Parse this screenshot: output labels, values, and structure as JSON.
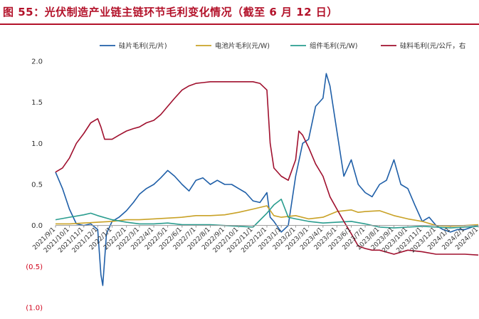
{
  "title": "图 55：光伏制造产业链主链环节毛利变化情况（截至 6 月 12 日）",
  "chart_data": {
    "type": "line",
    "ylim": [
      -1.0,
      2.0
    ],
    "yticks": [
      {
        "value": 2.0,
        "label": "2.0"
      },
      {
        "value": 1.5,
        "label": "1.5"
      },
      {
        "value": 1.0,
        "label": "1.0"
      },
      {
        "value": 0.5,
        "label": "0.5"
      },
      {
        "value": 0.0,
        "label": "0.0"
      },
      {
        "value": -0.5,
        "label": "(0.5)"
      },
      {
        "value": -1.0,
        "label": "(1.0)"
      }
    ],
    "x_labels": [
      "2021/9/1",
      "2021/10/1",
      "2021/11/1",
      "2021/12/1",
      "2022/1/1",
      "2022/2/1",
      "2022/3/1",
      "2022/4/1",
      "2022/5/1",
      "2022/6/1",
      "2022/7/1",
      "2022/8/1",
      "2022/9/1",
      "2022/10/1",
      "2022/11/1",
      "2022/12/1",
      "2023/1/1",
      "2023/2/1",
      "2023/3/1",
      "2023/4/1",
      "2023/5/1",
      "2023/6/1",
      "2023/7/1",
      "2023/8/1",
      "2023/9/1",
      "2023/10/1",
      "2023/11/1",
      "2023/12/1",
      "2024/1/1",
      "2024/2/1",
      "2024/3/1"
    ],
    "legend_position": "top",
    "grid": false,
    "series": [
      {
        "name": "硅片毛利(元/片)",
        "color": "#1f5fa8",
        "points": [
          [
            "2021/9/1",
            0.65
          ],
          [
            "2021/9/16",
            0.45
          ],
          [
            "2021/10/1",
            0.2
          ],
          [
            "2021/10/16",
            0.02
          ],
          [
            "2021/11/1",
            0.0
          ],
          [
            "2021/11/16",
            0.02
          ],
          [
            "2021/12/1",
            -0.05
          ],
          [
            "2021/12/8",
            -0.6
          ],
          [
            "2021/12/12",
            -0.73
          ],
          [
            "2021/12/20",
            -0.1
          ],
          [
            "2022/1/1",
            0.05
          ],
          [
            "2022/1/16",
            0.1
          ],
          [
            "2022/2/1",
            0.18
          ],
          [
            "2022/2/16",
            0.28
          ],
          [
            "2022/3/1",
            0.38
          ],
          [
            "2022/3/16",
            0.45
          ],
          [
            "2022/4/1",
            0.5
          ],
          [
            "2022/4/16",
            0.58
          ],
          [
            "2022/5/1",
            0.67
          ],
          [
            "2022/5/16",
            0.6
          ],
          [
            "2022/6/1",
            0.5
          ],
          [
            "2022/6/16",
            0.42
          ],
          [
            "2022/7/1",
            0.55
          ],
          [
            "2022/7/16",
            0.58
          ],
          [
            "2022/8/1",
            0.5
          ],
          [
            "2022/8/16",
            0.55
          ],
          [
            "2022/9/1",
            0.5
          ],
          [
            "2022/9/16",
            0.5
          ],
          [
            "2022/10/1",
            0.45
          ],
          [
            "2022/10/16",
            0.4
          ],
          [
            "2022/11/1",
            0.3
          ],
          [
            "2022/11/16",
            0.28
          ],
          [
            "2022/12/1",
            0.4
          ],
          [
            "2022/12/8",
            0.1
          ],
          [
            "2022/12/16",
            0.05
          ],
          [
            "2023/1/1",
            -0.08
          ],
          [
            "2023/1/16",
            0.0
          ],
          [
            "2023/2/1",
            0.6
          ],
          [
            "2023/2/16",
            1.0
          ],
          [
            "2023/3/1",
            1.05
          ],
          [
            "2023/3/16",
            1.45
          ],
          [
            "2023/4/1",
            1.55
          ],
          [
            "2023/4/8",
            1.85
          ],
          [
            "2023/4/16",
            1.7
          ],
          [
            "2023/5/1",
            1.15
          ],
          [
            "2023/5/16",
            0.6
          ],
          [
            "2023/6/1",
            0.8
          ],
          [
            "2023/6/16",
            0.5
          ],
          [
            "2023/7/1",
            0.4
          ],
          [
            "2023/7/16",
            0.35
          ],
          [
            "2023/8/1",
            0.5
          ],
          [
            "2023/8/16",
            0.55
          ],
          [
            "2023/9/1",
            0.8
          ],
          [
            "2023/9/16",
            0.5
          ],
          [
            "2023/10/1",
            0.45
          ],
          [
            "2023/10/16",
            0.25
          ],
          [
            "2023/11/1",
            0.05
          ],
          [
            "2023/11/16",
            0.1
          ],
          [
            "2023/12/1",
            0.0
          ],
          [
            "2023/12/16",
            -0.05
          ],
          [
            "2024/1/1",
            -0.08
          ],
          [
            "2024/1/16",
            -0.05
          ],
          [
            "2024/2/1",
            -0.05
          ],
          [
            "2024/2/16",
            -0.02
          ],
          [
            "2024/3/1",
            0.0
          ]
        ]
      },
      {
        "name": "电池片毛利(元/W)",
        "color": "#c9a227",
        "points": [
          [
            "2021/9/1",
            0.02
          ],
          [
            "2021/10/1",
            0.02
          ],
          [
            "2021/11/1",
            0.03
          ],
          [
            "2021/12/1",
            0.04
          ],
          [
            "2022/1/1",
            0.05
          ],
          [
            "2022/2/1",
            0.07
          ],
          [
            "2022/3/1",
            0.07
          ],
          [
            "2022/4/1",
            0.08
          ],
          [
            "2022/5/1",
            0.09
          ],
          [
            "2022/6/1",
            0.1
          ],
          [
            "2022/7/1",
            0.12
          ],
          [
            "2022/8/1",
            0.12
          ],
          [
            "2022/9/1",
            0.13
          ],
          [
            "2022/10/1",
            0.16
          ],
          [
            "2022/11/1",
            0.2
          ],
          [
            "2022/12/1",
            0.24
          ],
          [
            "2022/12/16",
            0.12
          ],
          [
            "2023/1/1",
            0.1
          ],
          [
            "2023/2/1",
            0.12
          ],
          [
            "2023/3/1",
            0.08
          ],
          [
            "2023/4/1",
            0.1
          ],
          [
            "2023/5/1",
            0.17
          ],
          [
            "2023/6/1",
            0.19
          ],
          [
            "2023/6/16",
            0.16
          ],
          [
            "2023/7/1",
            0.17
          ],
          [
            "2023/8/1",
            0.18
          ],
          [
            "2023/9/1",
            0.12
          ],
          [
            "2023/10/1",
            0.08
          ],
          [
            "2023/11/1",
            0.05
          ],
          [
            "2023/12/1",
            0.0
          ],
          [
            "2024/1/1",
            -0.01
          ],
          [
            "2024/2/1",
            0.0
          ],
          [
            "2024/3/1",
            0.01
          ]
        ]
      },
      {
        "name": "组件毛利(元/W)",
        "color": "#2a9d8f",
        "points": [
          [
            "2021/9/1",
            0.07
          ],
          [
            "2021/10/1",
            0.1
          ],
          [
            "2021/11/1",
            0.13
          ],
          [
            "2021/11/16",
            0.15
          ],
          [
            "2021/12/1",
            0.12
          ],
          [
            "2022/1/1",
            0.07
          ],
          [
            "2022/2/1",
            0.04
          ],
          [
            "2022/3/1",
            0.02
          ],
          [
            "2022/4/1",
            0.02
          ],
          [
            "2022/5/1",
            0.03
          ],
          [
            "2022/6/1",
            0.01
          ],
          [
            "2022/7/1",
            0.01
          ],
          [
            "2022/8/1",
            0.01
          ],
          [
            "2022/9/1",
            0.0
          ],
          [
            "2022/10/1",
            -0.01
          ],
          [
            "2022/11/1",
            -0.02
          ],
          [
            "2022/12/1",
            0.15
          ],
          [
            "2022/12/16",
            0.25
          ],
          [
            "2023/1/1",
            0.32
          ],
          [
            "2023/1/16",
            0.1
          ],
          [
            "2023/2/1",
            0.08
          ],
          [
            "2023/3/1",
            0.05
          ],
          [
            "2023/4/1",
            0.03
          ],
          [
            "2023/5/1",
            0.04
          ],
          [
            "2023/6/1",
            0.05
          ],
          [
            "2023/7/1",
            0.02
          ],
          [
            "2023/8/1",
            -0.02
          ],
          [
            "2023/9/1",
            -0.03
          ],
          [
            "2023/10/1",
            -0.02
          ],
          [
            "2023/11/1",
            -0.01
          ],
          [
            "2023/12/1",
            -0.02
          ],
          [
            "2024/1/1",
            -0.03
          ],
          [
            "2024/2/1",
            -0.02
          ],
          [
            "2024/3/1",
            -0.01
          ]
        ]
      },
      {
        "name": "硅料毛利(元/公斤，右",
        "color": "#a0102e",
        "points": [
          [
            "2021/9/1",
            0.65
          ],
          [
            "2021/9/16",
            0.7
          ],
          [
            "2021/10/1",
            0.82
          ],
          [
            "2021/10/16",
            1.0
          ],
          [
            "2021/11/1",
            1.12
          ],
          [
            "2021/11/16",
            1.25
          ],
          [
            "2021/12/1",
            1.3
          ],
          [
            "2021/12/8",
            1.2
          ],
          [
            "2021/12/16",
            1.05
          ],
          [
            "2022/1/1",
            1.05
          ],
          [
            "2022/1/16",
            1.1
          ],
          [
            "2022/2/1",
            1.15
          ],
          [
            "2022/2/16",
            1.18
          ],
          [
            "2022/3/1",
            1.2
          ],
          [
            "2022/3/16",
            1.25
          ],
          [
            "2022/4/1",
            1.28
          ],
          [
            "2022/4/16",
            1.35
          ],
          [
            "2022/5/1",
            1.45
          ],
          [
            "2022/5/16",
            1.55
          ],
          [
            "2022/6/1",
            1.65
          ],
          [
            "2022/6/16",
            1.7
          ],
          [
            "2022/7/1",
            1.73
          ],
          [
            "2022/7/16",
            1.74
          ],
          [
            "2022/8/1",
            1.75
          ],
          [
            "2022/9/1",
            1.75
          ],
          [
            "2022/10/1",
            1.75
          ],
          [
            "2022/11/1",
            1.75
          ],
          [
            "2022/11/16",
            1.73
          ],
          [
            "2022/12/1",
            1.65
          ],
          [
            "2022/12/8",
            1.0
          ],
          [
            "2022/12/16",
            0.7
          ],
          [
            "2023/1/1",
            0.6
          ],
          [
            "2023/1/16",
            0.55
          ],
          [
            "2023/2/1",
            0.8
          ],
          [
            "2023/2/8",
            1.15
          ],
          [
            "2023/2/16",
            1.1
          ],
          [
            "2023/3/1",
            0.95
          ],
          [
            "2023/3/16",
            0.75
          ],
          [
            "2023/4/1",
            0.6
          ],
          [
            "2023/4/16",
            0.35
          ],
          [
            "2023/5/1",
            0.2
          ],
          [
            "2023/5/16",
            0.05
          ],
          [
            "2023/6/1",
            -0.1
          ],
          [
            "2023/6/16",
            -0.25
          ],
          [
            "2023/7/1",
            -0.28
          ],
          [
            "2023/7/16",
            -0.3
          ],
          [
            "2023/8/1",
            -0.3
          ],
          [
            "2023/9/1",
            -0.35
          ],
          [
            "2023/10/1",
            -0.3
          ],
          [
            "2023/11/1",
            -0.32
          ],
          [
            "2023/12/1",
            -0.35
          ],
          [
            "2024/1/1",
            -0.35
          ],
          [
            "2024/2/1",
            -0.35
          ],
          [
            "2024/3/1",
            -0.36
          ]
        ]
      }
    ]
  }
}
